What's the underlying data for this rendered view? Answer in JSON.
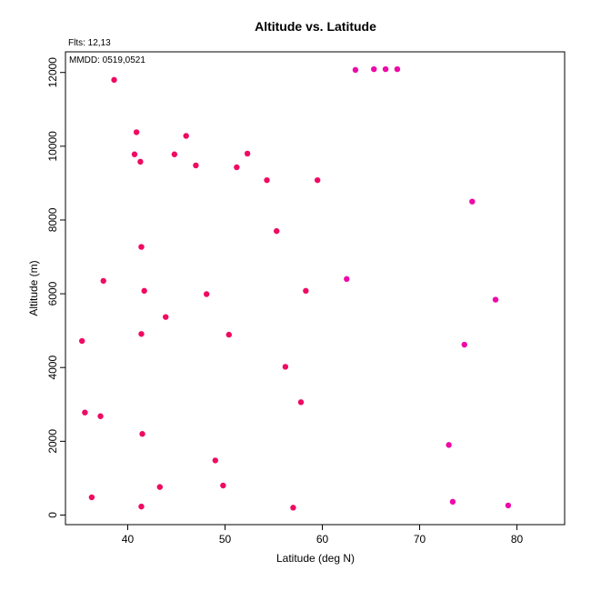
{
  "chart_data": {
    "type": "scatter",
    "title": "Altitude vs. Latitude",
    "xlabel": "Latitude (deg N)",
    "ylabel": "Altitude (m)",
    "xlim": [
      33.6,
      84.9
    ],
    "ylim": [
      -260,
      12560
    ],
    "xticks": [
      40,
      50,
      60,
      70,
      80
    ],
    "yticks": [
      0,
      2000,
      4000,
      6000,
      8000,
      10000,
      12000
    ],
    "grid": false,
    "annotations": {
      "fits": "Flts: 12,13",
      "mmdd": "MMDD: 0519,0521"
    },
    "colors": {
      "point_red": "#ef0a62",
      "point_magenta": "#ee0aa8"
    },
    "points": [
      {
        "x": 38.6,
        "y": 11800,
        "c": "red"
      },
      {
        "x": 63.4,
        "y": 12070,
        "c": "magenta"
      },
      {
        "x": 65.3,
        "y": 12090,
        "c": "magenta"
      },
      {
        "x": 66.5,
        "y": 12090,
        "c": "magenta"
      },
      {
        "x": 67.7,
        "y": 12090,
        "c": "magenta"
      },
      {
        "x": 40.9,
        "y": 10380,
        "c": "red"
      },
      {
        "x": 46.0,
        "y": 10280,
        "c": "red"
      },
      {
        "x": 40.7,
        "y": 9780,
        "c": "red"
      },
      {
        "x": 44.8,
        "y": 9780,
        "c": "red"
      },
      {
        "x": 52.3,
        "y": 9800,
        "c": "red"
      },
      {
        "x": 41.3,
        "y": 9580,
        "c": "red"
      },
      {
        "x": 47.0,
        "y": 9480,
        "c": "red"
      },
      {
        "x": 51.2,
        "y": 9430,
        "c": "red"
      },
      {
        "x": 54.3,
        "y": 9080,
        "c": "red"
      },
      {
        "x": 59.5,
        "y": 9080,
        "c": "red"
      },
      {
        "x": 75.4,
        "y": 8500,
        "c": "magenta"
      },
      {
        "x": 55.3,
        "y": 7700,
        "c": "red"
      },
      {
        "x": 41.4,
        "y": 7270,
        "c": "red"
      },
      {
        "x": 37.5,
        "y": 6350,
        "c": "red"
      },
      {
        "x": 62.5,
        "y": 6400,
        "c": "magenta"
      },
      {
        "x": 41.7,
        "y": 6080,
        "c": "red"
      },
      {
        "x": 48.1,
        "y": 5990,
        "c": "red"
      },
      {
        "x": 58.3,
        "y": 6080,
        "c": "red"
      },
      {
        "x": 77.8,
        "y": 5840,
        "c": "magenta"
      },
      {
        "x": 43.9,
        "y": 5370,
        "c": "red"
      },
      {
        "x": 41.4,
        "y": 4910,
        "c": "red"
      },
      {
        "x": 50.4,
        "y": 4890,
        "c": "red"
      },
      {
        "x": 35.3,
        "y": 4720,
        "c": "red"
      },
      {
        "x": 74.6,
        "y": 4620,
        "c": "magenta"
      },
      {
        "x": 56.2,
        "y": 4020,
        "c": "red"
      },
      {
        "x": 57.8,
        "y": 3060,
        "c": "red"
      },
      {
        "x": 35.6,
        "y": 2780,
        "c": "red"
      },
      {
        "x": 37.2,
        "y": 2680,
        "c": "red"
      },
      {
        "x": 41.5,
        "y": 2200,
        "c": "red"
      },
      {
        "x": 73.0,
        "y": 1900,
        "c": "magenta"
      },
      {
        "x": 49.0,
        "y": 1480,
        "c": "red"
      },
      {
        "x": 43.3,
        "y": 760,
        "c": "red"
      },
      {
        "x": 49.8,
        "y": 800,
        "c": "red"
      },
      {
        "x": 36.3,
        "y": 480,
        "c": "red"
      },
      {
        "x": 73.4,
        "y": 360,
        "c": "magenta"
      },
      {
        "x": 41.4,
        "y": 230,
        "c": "red"
      },
      {
        "x": 57.0,
        "y": 200,
        "c": "red"
      },
      {
        "x": 79.1,
        "y": 260,
        "c": "magenta"
      }
    ]
  }
}
